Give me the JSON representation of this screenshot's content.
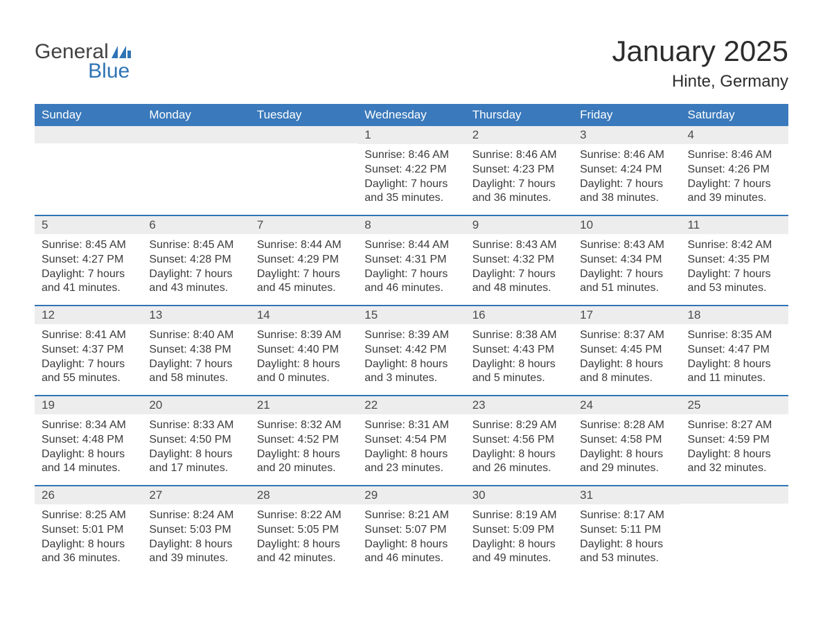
{
  "logo": {
    "general": "General",
    "blue": "Blue",
    "flag_color": "#2f74b5"
  },
  "header": {
    "title": "January 2025",
    "location": "Hinte, Germany"
  },
  "colors": {
    "header_bg": "#3a79bb",
    "header_text": "#ffffff",
    "week_border": "#2f74b5",
    "daynum_bg": "#ededed",
    "body_text": "#3a3a3a",
    "title_text": "#2c2c2c",
    "logo_general": "#424242",
    "logo_blue": "#2f74b5",
    "page_bg": "#ffffff"
  },
  "typography": {
    "title_fontsize": 42,
    "location_fontsize": 24,
    "weekday_fontsize": 17,
    "daynum_fontsize": 17,
    "body_fontsize": 16
  },
  "calendar": {
    "type": "calendar-table",
    "weekdays": [
      "Sunday",
      "Monday",
      "Tuesday",
      "Wednesday",
      "Thursday",
      "Friday",
      "Saturday"
    ],
    "weeks": [
      [
        {
          "day": "",
          "sunrise": "",
          "sunset": "",
          "daylight1": "",
          "daylight2": ""
        },
        {
          "day": "",
          "sunrise": "",
          "sunset": "",
          "daylight1": "",
          "daylight2": ""
        },
        {
          "day": "",
          "sunrise": "",
          "sunset": "",
          "daylight1": "",
          "daylight2": ""
        },
        {
          "day": "1",
          "sunrise": "Sunrise: 8:46 AM",
          "sunset": "Sunset: 4:22 PM",
          "daylight1": "Daylight: 7 hours",
          "daylight2": "and 35 minutes."
        },
        {
          "day": "2",
          "sunrise": "Sunrise: 8:46 AM",
          "sunset": "Sunset: 4:23 PM",
          "daylight1": "Daylight: 7 hours",
          "daylight2": "and 36 minutes."
        },
        {
          "day": "3",
          "sunrise": "Sunrise: 8:46 AM",
          "sunset": "Sunset: 4:24 PM",
          "daylight1": "Daylight: 7 hours",
          "daylight2": "and 38 minutes."
        },
        {
          "day": "4",
          "sunrise": "Sunrise: 8:46 AM",
          "sunset": "Sunset: 4:26 PM",
          "daylight1": "Daylight: 7 hours",
          "daylight2": "and 39 minutes."
        }
      ],
      [
        {
          "day": "5",
          "sunrise": "Sunrise: 8:45 AM",
          "sunset": "Sunset: 4:27 PM",
          "daylight1": "Daylight: 7 hours",
          "daylight2": "and 41 minutes."
        },
        {
          "day": "6",
          "sunrise": "Sunrise: 8:45 AM",
          "sunset": "Sunset: 4:28 PM",
          "daylight1": "Daylight: 7 hours",
          "daylight2": "and 43 minutes."
        },
        {
          "day": "7",
          "sunrise": "Sunrise: 8:44 AM",
          "sunset": "Sunset: 4:29 PM",
          "daylight1": "Daylight: 7 hours",
          "daylight2": "and 45 minutes."
        },
        {
          "day": "8",
          "sunrise": "Sunrise: 8:44 AM",
          "sunset": "Sunset: 4:31 PM",
          "daylight1": "Daylight: 7 hours",
          "daylight2": "and 46 minutes."
        },
        {
          "day": "9",
          "sunrise": "Sunrise: 8:43 AM",
          "sunset": "Sunset: 4:32 PM",
          "daylight1": "Daylight: 7 hours",
          "daylight2": "and 48 minutes."
        },
        {
          "day": "10",
          "sunrise": "Sunrise: 8:43 AM",
          "sunset": "Sunset: 4:34 PM",
          "daylight1": "Daylight: 7 hours",
          "daylight2": "and 51 minutes."
        },
        {
          "day": "11",
          "sunrise": "Sunrise: 8:42 AM",
          "sunset": "Sunset: 4:35 PM",
          "daylight1": "Daylight: 7 hours",
          "daylight2": "and 53 minutes."
        }
      ],
      [
        {
          "day": "12",
          "sunrise": "Sunrise: 8:41 AM",
          "sunset": "Sunset: 4:37 PM",
          "daylight1": "Daylight: 7 hours",
          "daylight2": "and 55 minutes."
        },
        {
          "day": "13",
          "sunrise": "Sunrise: 8:40 AM",
          "sunset": "Sunset: 4:38 PM",
          "daylight1": "Daylight: 7 hours",
          "daylight2": "and 58 minutes."
        },
        {
          "day": "14",
          "sunrise": "Sunrise: 8:39 AM",
          "sunset": "Sunset: 4:40 PM",
          "daylight1": "Daylight: 8 hours",
          "daylight2": "and 0 minutes."
        },
        {
          "day": "15",
          "sunrise": "Sunrise: 8:39 AM",
          "sunset": "Sunset: 4:42 PM",
          "daylight1": "Daylight: 8 hours",
          "daylight2": "and 3 minutes."
        },
        {
          "day": "16",
          "sunrise": "Sunrise: 8:38 AM",
          "sunset": "Sunset: 4:43 PM",
          "daylight1": "Daylight: 8 hours",
          "daylight2": "and 5 minutes."
        },
        {
          "day": "17",
          "sunrise": "Sunrise: 8:37 AM",
          "sunset": "Sunset: 4:45 PM",
          "daylight1": "Daylight: 8 hours",
          "daylight2": "and 8 minutes."
        },
        {
          "day": "18",
          "sunrise": "Sunrise: 8:35 AM",
          "sunset": "Sunset: 4:47 PM",
          "daylight1": "Daylight: 8 hours",
          "daylight2": "and 11 minutes."
        }
      ],
      [
        {
          "day": "19",
          "sunrise": "Sunrise: 8:34 AM",
          "sunset": "Sunset: 4:48 PM",
          "daylight1": "Daylight: 8 hours",
          "daylight2": "and 14 minutes."
        },
        {
          "day": "20",
          "sunrise": "Sunrise: 8:33 AM",
          "sunset": "Sunset: 4:50 PM",
          "daylight1": "Daylight: 8 hours",
          "daylight2": "and 17 minutes."
        },
        {
          "day": "21",
          "sunrise": "Sunrise: 8:32 AM",
          "sunset": "Sunset: 4:52 PM",
          "daylight1": "Daylight: 8 hours",
          "daylight2": "and 20 minutes."
        },
        {
          "day": "22",
          "sunrise": "Sunrise: 8:31 AM",
          "sunset": "Sunset: 4:54 PM",
          "daylight1": "Daylight: 8 hours",
          "daylight2": "and 23 minutes."
        },
        {
          "day": "23",
          "sunrise": "Sunrise: 8:29 AM",
          "sunset": "Sunset: 4:56 PM",
          "daylight1": "Daylight: 8 hours",
          "daylight2": "and 26 minutes."
        },
        {
          "day": "24",
          "sunrise": "Sunrise: 8:28 AM",
          "sunset": "Sunset: 4:58 PM",
          "daylight1": "Daylight: 8 hours",
          "daylight2": "and 29 minutes."
        },
        {
          "day": "25",
          "sunrise": "Sunrise: 8:27 AM",
          "sunset": "Sunset: 4:59 PM",
          "daylight1": "Daylight: 8 hours",
          "daylight2": "and 32 minutes."
        }
      ],
      [
        {
          "day": "26",
          "sunrise": "Sunrise: 8:25 AM",
          "sunset": "Sunset: 5:01 PM",
          "daylight1": "Daylight: 8 hours",
          "daylight2": "and 36 minutes."
        },
        {
          "day": "27",
          "sunrise": "Sunrise: 8:24 AM",
          "sunset": "Sunset: 5:03 PM",
          "daylight1": "Daylight: 8 hours",
          "daylight2": "and 39 minutes."
        },
        {
          "day": "28",
          "sunrise": "Sunrise: 8:22 AM",
          "sunset": "Sunset: 5:05 PM",
          "daylight1": "Daylight: 8 hours",
          "daylight2": "and 42 minutes."
        },
        {
          "day": "29",
          "sunrise": "Sunrise: 8:21 AM",
          "sunset": "Sunset: 5:07 PM",
          "daylight1": "Daylight: 8 hours",
          "daylight2": "and 46 minutes."
        },
        {
          "day": "30",
          "sunrise": "Sunrise: 8:19 AM",
          "sunset": "Sunset: 5:09 PM",
          "daylight1": "Daylight: 8 hours",
          "daylight2": "and 49 minutes."
        },
        {
          "day": "31",
          "sunrise": "Sunrise: 8:17 AM",
          "sunset": "Sunset: 5:11 PM",
          "daylight1": "Daylight: 8 hours",
          "daylight2": "and 53 minutes."
        },
        {
          "day": "",
          "sunrise": "",
          "sunset": "",
          "daylight1": "",
          "daylight2": ""
        }
      ]
    ]
  }
}
